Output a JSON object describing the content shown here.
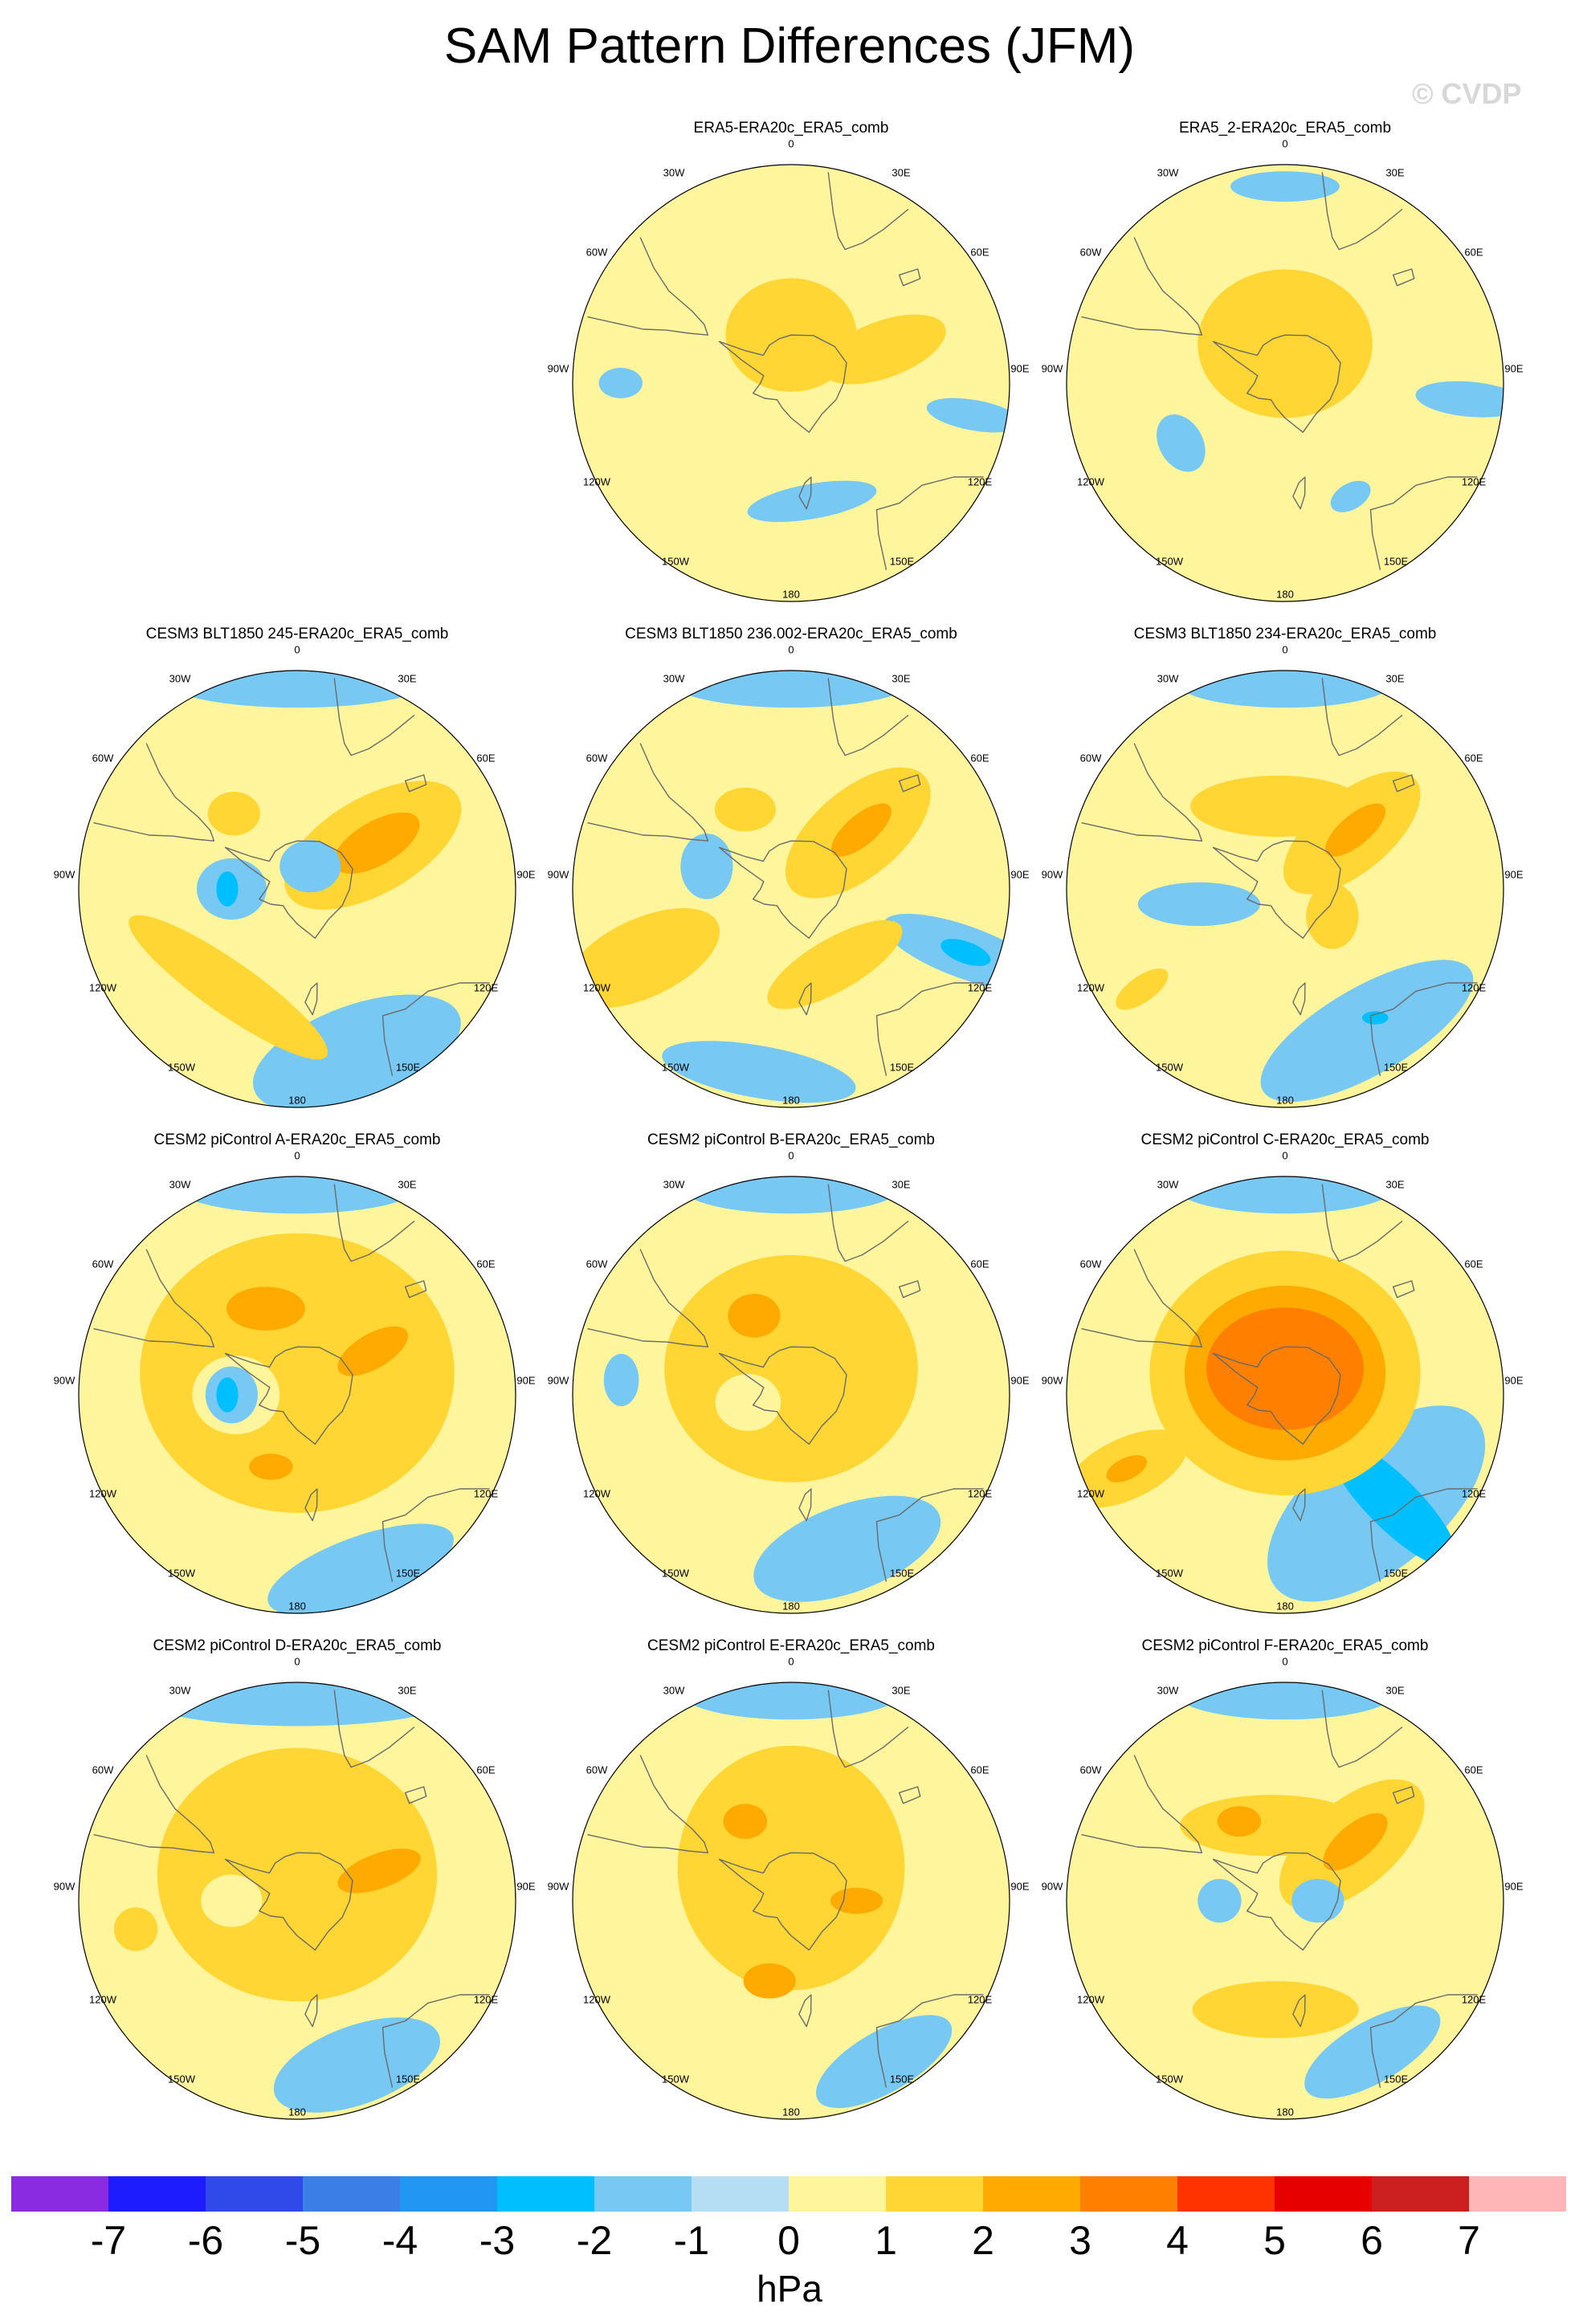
{
  "title": "SAM Pattern Differences (JFM)",
  "watermark": "© CVDP",
  "lon_labels": {
    "l0": "0",
    "l30e": "30E",
    "l60e": "60E",
    "l90e": "90E",
    "l120e": "120E",
    "l150e": "150E",
    "l180": "180",
    "l150w": "150W",
    "l120w": "120W",
    "l90w": "90W",
    "l60w": "60W",
    "l30w": "30W"
  },
  "panels": [
    {
      "title": "ERA5-ERA20c_ERA5_comb",
      "blobs": [
        {
          "lev": 1,
          "lon": 0,
          "r": 0.22,
          "rx": 0.3,
          "ry": 0.26,
          "rot": 0
        },
        {
          "lev": 1,
          "lon": 70,
          "r": 0.45,
          "rx": 0.13,
          "ry": 0.3,
          "rot": 70
        },
        {
          "lev": -1,
          "lon": 100,
          "r": 0.85,
          "rx": 0.07,
          "ry": 0.22,
          "rot": 100
        },
        {
          "lev": -1,
          "lon": 170,
          "r": 0.55,
          "rx": 0.3,
          "ry": 0.08,
          "rot": 170
        },
        {
          "lev": -1,
          "lon": 270,
          "r": 0.78,
          "rx": 0.1,
          "ry": 0.07,
          "rot": 0
        }
      ]
    },
    {
      "title": "ERA5_2-ERA20c_ERA5_comb",
      "blobs": [
        {
          "lev": 1,
          "lon": 0,
          "r": 0.18,
          "rx": 0.4,
          "ry": 0.34,
          "rot": 0
        },
        {
          "lev": -1,
          "lon": 0,
          "r": 0.9,
          "rx": 0.25,
          "ry": 0.07,
          "rot": 0
        },
        {
          "lev": -1,
          "lon": 95,
          "r": 0.85,
          "rx": 0.08,
          "ry": 0.25,
          "rot": 95
        },
        {
          "lev": -1,
          "lon": 240,
          "r": 0.55,
          "rx": 0.14,
          "ry": 0.1,
          "rot": 60
        },
        {
          "lev": -1,
          "lon": 150,
          "r": 0.6,
          "rx": 0.1,
          "ry": 0.06,
          "rot": 150
        }
      ]
    },
    {
      "title": "CESM3 BLT1850 245-ERA20c_ERA5_comb",
      "blobs": [
        {
          "lev": -1,
          "lon": 0,
          "r": 0.95,
          "rx": 0.6,
          "ry": 0.12,
          "rot": 0
        },
        {
          "lev": -1,
          "lon": 160,
          "r": 0.8,
          "rx": 0.5,
          "ry": 0.22,
          "rot": 160
        },
        {
          "lev": 1,
          "lon": 60,
          "r": 0.4,
          "rx": 0.22,
          "ry": 0.45,
          "rot": 60
        },
        {
          "lev": 2,
          "lon": 60,
          "r": 0.42,
          "rx": 0.1,
          "ry": 0.22,
          "rot": 60
        },
        {
          "lev": 1,
          "lon": 215,
          "r": 0.55,
          "rx": 0.55,
          "ry": 0.12,
          "rot": 215
        },
        {
          "lev": 1,
          "lon": 320,
          "r": 0.45,
          "rx": 0.12,
          "ry": 0.1,
          "rot": 0
        },
        {
          "lev": -1,
          "lon": 270,
          "r": 0.3,
          "rx": 0.16,
          "ry": 0.14,
          "rot": 0
        },
        {
          "lev": -2,
          "lon": 270,
          "r": 0.32,
          "rx": 0.05,
          "ry": 0.08,
          "rot": 0
        },
        {
          "lev": -1,
          "lon": 30,
          "r": 0.12,
          "rx": 0.14,
          "ry": 0.12,
          "rot": 0
        }
      ]
    },
    {
      "title": "CESM3 BLT1850 236.002-ERA20c_ERA5_comb",
      "blobs": [
        {
          "lev": -1,
          "lon": 0,
          "r": 0.95,
          "rx": 0.55,
          "ry": 0.12,
          "rot": 0
        },
        {
          "lev": -1,
          "lon": 110,
          "r": 0.85,
          "rx": 0.12,
          "ry": 0.4,
          "rot": 110
        },
        {
          "lev": -1,
          "lon": 190,
          "r": 0.85,
          "rx": 0.45,
          "ry": 0.12,
          "rot": 190
        },
        {
          "lev": 1,
          "lon": 50,
          "r": 0.4,
          "rx": 0.2,
          "ry": 0.4,
          "rot": 50
        },
        {
          "lev": 2,
          "lon": 50,
          "r": 0.42,
          "rx": 0.07,
          "ry": 0.17,
          "rot": 50
        },
        {
          "lev": 1,
          "lon": 150,
          "r": 0.4,
          "rx": 0.35,
          "ry": 0.12,
          "rot": 150
        },
        {
          "lev": 1,
          "lon": 245,
          "r": 0.75,
          "rx": 0.18,
          "ry": 0.38,
          "rot": 245
        },
        {
          "lev": 1,
          "lon": 330,
          "r": 0.42,
          "rx": 0.14,
          "ry": 0.1,
          "rot": 0
        },
        {
          "lev": -1,
          "lon": 285,
          "r": 0.4,
          "rx": 0.12,
          "ry": 0.15,
          "rot": 0
        },
        {
          "lev": -2,
          "lon": 110,
          "r": 0.85,
          "rx": 0.05,
          "ry": 0.12,
          "rot": 110
        }
      ]
    },
    {
      "title": "CESM3 BLT1850 234-ERA20c_ERA5_comb",
      "blobs": [
        {
          "lev": -1,
          "lon": 0,
          "r": 0.95,
          "rx": 0.5,
          "ry": 0.12,
          "rot": 0
        },
        {
          "lev": -1,
          "lon": 150,
          "r": 0.75,
          "rx": 0.55,
          "ry": 0.2,
          "rot": 150
        },
        {
          "lev": 1,
          "lon": 355,
          "r": 0.38,
          "rx": 0.4,
          "ry": 0.14,
          "rot": 0
        },
        {
          "lev": 1,
          "lon": 50,
          "r": 0.4,
          "rx": 0.18,
          "ry": 0.38,
          "rot": 50
        },
        {
          "lev": 2,
          "lon": 50,
          "r": 0.42,
          "rx": 0.07,
          "ry": 0.17,
          "rot": 50
        },
        {
          "lev": 1,
          "lon": 120,
          "r": 0.25,
          "rx": 0.12,
          "ry": 0.15,
          "rot": 0
        },
        {
          "lev": -1,
          "lon": 260,
          "r": 0.4,
          "rx": 0.1,
          "ry": 0.28,
          "rot": 270
        },
        {
          "lev": 1,
          "lon": 235,
          "r": 0.8,
          "rx": 0.06,
          "ry": 0.14,
          "rot": 235
        },
        {
          "lev": -2,
          "lon": 145,
          "r": 0.72,
          "rx": 0.06,
          "ry": 0.03,
          "rot": 0
        }
      ]
    },
    {
      "title": "CESM2 piControl A-ERA20c_ERA5_comb",
      "blobs": [
        {
          "lev": -1,
          "lon": 0,
          "r": 0.95,
          "rx": 0.55,
          "ry": 0.12,
          "rot": 0
        },
        {
          "lev": -1,
          "lon": 160,
          "r": 0.85,
          "rx": 0.45,
          "ry": 0.15,
          "rot": 160
        },
        {
          "lev": 1,
          "lon": 0,
          "r": 0.1,
          "rx": 0.72,
          "ry": 0.64,
          "rot": 0
        },
        {
          "lev": 2,
          "lon": 340,
          "r": 0.42,
          "rx": 0.18,
          "ry": 0.1,
          "rot": 0
        },
        {
          "lev": 2,
          "lon": 60,
          "r": 0.4,
          "rx": 0.08,
          "ry": 0.18,
          "rot": 60
        },
        {
          "lev": 2,
          "lon": 200,
          "r": 0.35,
          "rx": 0.1,
          "ry": 0.06,
          "rot": 0
        },
        {
          "lev": 0,
          "lon": 270,
          "r": 0.28,
          "rx": 0.2,
          "ry": 0.18,
          "rot": 0
        },
        {
          "lev": -1,
          "lon": 270,
          "r": 0.3,
          "rx": 0.12,
          "ry": 0.13,
          "rot": 0
        },
        {
          "lev": -2,
          "lon": 270,
          "r": 0.32,
          "rx": 0.05,
          "ry": 0.08,
          "rot": 0
        }
      ]
    },
    {
      "title": "CESM2 piControl B-ERA20c_ERA5_comb",
      "blobs": [
        {
          "lev": -1,
          "lon": 0,
          "r": 0.95,
          "rx": 0.5,
          "ry": 0.12,
          "rot": 0
        },
        {
          "lev": -1,
          "lon": 160,
          "r": 0.75,
          "rx": 0.45,
          "ry": 0.2,
          "rot": 160
        },
        {
          "lev": -1,
          "lon": 275,
          "r": 0.78,
          "rx": 0.08,
          "ry": 0.12,
          "rot": 0
        },
        {
          "lev": 1,
          "lon": 0,
          "r": 0.12,
          "rx": 0.58,
          "ry": 0.52,
          "rot": 0
        },
        {
          "lev": 2,
          "lon": 335,
          "r": 0.4,
          "rx": 0.12,
          "ry": 0.1,
          "rot": 0
        },
        {
          "lev": 0,
          "lon": 260,
          "r": 0.2,
          "rx": 0.15,
          "ry": 0.13,
          "rot": 0
        }
      ]
    },
    {
      "title": "CESM2 piControl C-ERA20c_ERA5_comb",
      "blobs": [
        {
          "lev": -1,
          "lon": 0,
          "r": 0.95,
          "rx": 0.5,
          "ry": 0.12,
          "rot": 0
        },
        {
          "lev": -1,
          "lon": 140,
          "r": 0.65,
          "rx": 0.6,
          "ry": 0.3,
          "rot": 140
        },
        {
          "lev": -2,
          "lon": 135,
          "r": 0.7,
          "rx": 0.12,
          "ry": 0.4,
          "rot": 135
        },
        {
          "lev": 1,
          "lon": 0,
          "r": 0.1,
          "rx": 0.62,
          "ry": 0.56,
          "rot": 0
        },
        {
          "lev": 2,
          "lon": 0,
          "r": 0.1,
          "rx": 0.46,
          "ry": 0.4,
          "rot": 0
        },
        {
          "lev": 3,
          "lon": 0,
          "r": 0.12,
          "rx": 0.36,
          "ry": 0.28,
          "rot": 0
        },
        {
          "lev": 1,
          "lon": 245,
          "r": 0.8,
          "rx": 0.14,
          "ry": 0.3,
          "rot": 245
        },
        {
          "lev": 2,
          "lon": 245,
          "r": 0.8,
          "rx": 0.05,
          "ry": 0.1,
          "rot": 245
        }
      ]
    },
    {
      "title": "CESM2 piControl D-ERA20c_ERA5_comb",
      "blobs": [
        {
          "lev": -1,
          "lon": 0,
          "r": 0.92,
          "rx": 0.7,
          "ry": 0.12,
          "rot": 0
        },
        {
          "lev": -1,
          "lon": 160,
          "r": 0.8,
          "rx": 0.4,
          "ry": 0.18,
          "rot": 160
        },
        {
          "lev": 1,
          "lon": 0,
          "r": 0.12,
          "rx": 0.64,
          "ry": 0.58,
          "rot": 0
        },
        {
          "lev": 2,
          "lon": 70,
          "r": 0.4,
          "rx": 0.08,
          "ry": 0.2,
          "rot": 70
        },
        {
          "lev": 1,
          "lon": 260,
          "r": 0.75,
          "rx": 0.1,
          "ry": 0.1,
          "rot": 0
        },
        {
          "lev": 0,
          "lon": 270,
          "r": 0.3,
          "rx": 0.14,
          "ry": 0.12,
          "rot": 0
        }
      ]
    },
    {
      "title": "CESM2 piControl E-ERA20c_ERA5_comb",
      "blobs": [
        {
          "lev": -1,
          "lon": 0,
          "r": 0.95,
          "rx": 0.5,
          "ry": 0.12,
          "rot": 0
        },
        {
          "lev": -1,
          "lon": 150,
          "r": 0.85,
          "rx": 0.35,
          "ry": 0.14,
          "rot": 150
        },
        {
          "lev": 1,
          "lon": 0,
          "r": 0.15,
          "rx": 0.52,
          "ry": 0.56,
          "rot": 0
        },
        {
          "lev": 2,
          "lon": 330,
          "r": 0.42,
          "rx": 0.1,
          "ry": 0.08,
          "rot": 0
        },
        {
          "lev": 2,
          "lon": 195,
          "r": 0.38,
          "rx": 0.12,
          "ry": 0.08,
          "rot": 0
        },
        {
          "lev": 2,
          "lon": 90,
          "r": 0.3,
          "rx": 0.06,
          "ry": 0.12,
          "rot": 90
        }
      ]
    },
    {
      "title": "CESM2 piControl F-ERA20c_ERA5_comb",
      "blobs": [
        {
          "lev": -1,
          "lon": 0,
          "r": 0.95,
          "rx": 0.5,
          "ry": 0.12,
          "rot": 0
        },
        {
          "lev": -1,
          "lon": 150,
          "r": 0.8,
          "rx": 0.35,
          "ry": 0.14,
          "rot": 150
        },
        {
          "lev": 1,
          "lon": 350,
          "r": 0.35,
          "rx": 0.42,
          "ry": 0.14,
          "rot": 0
        },
        {
          "lev": 1,
          "lon": 50,
          "r": 0.4,
          "rx": 0.2,
          "ry": 0.4,
          "rot": 50
        },
        {
          "lev": 2,
          "lon": 50,
          "r": 0.42,
          "rx": 0.08,
          "ry": 0.18,
          "rot": 50
        },
        {
          "lev": 1,
          "lon": 185,
          "r": 0.5,
          "rx": 0.38,
          "ry": 0.13,
          "rot": 0
        },
        {
          "lev": 2,
          "lon": 330,
          "r": 0.42,
          "rx": 0.1,
          "ry": 0.07,
          "rot": 0
        },
        {
          "lev": -1,
          "lon": 270,
          "r": 0.3,
          "rx": 0.1,
          "ry": 0.1,
          "rot": 0
        },
        {
          "lev": -1,
          "lon": 90,
          "r": 0.15,
          "rx": 0.12,
          "ry": 0.1,
          "rot": 0
        }
      ]
    }
  ],
  "colorbar": {
    "colors": [
      "#8a2be2",
      "#1c1cff",
      "#2f4ae8",
      "#3a7ee6",
      "#2196f3",
      "#00bfff",
      "#77c9f3",
      "#b5def4",
      "#fff59d",
      "#ffd633",
      "#ffaa00",
      "#ff7f00",
      "#ff3300",
      "#e60000",
      "#cc1f1f",
      "#ffb6b6"
    ],
    "labels": [
      "-7",
      "-6",
      "-5",
      "-4",
      "-3",
      "-2",
      "-1",
      "0",
      "1",
      "2",
      "3",
      "4",
      "5",
      "6",
      "7"
    ],
    "units": "hPa"
  }
}
